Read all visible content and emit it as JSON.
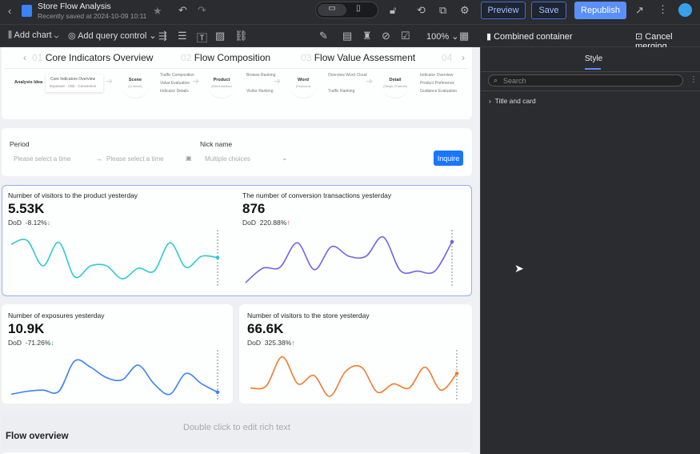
{
  "header": {
    "title": "Store Flow Analysis",
    "saved": "Recently saved at 2024-10-09 10:11",
    "preview": "Preview",
    "save": "Save",
    "republish": "Republish"
  },
  "toolbar": {
    "add_chart": "Add chart",
    "add_query": "Add query control",
    "zoom": "100%"
  },
  "panel": {
    "title": "Combined container",
    "cancel": "Cancel merging",
    "tab": "Style",
    "search_placeholder": "Search",
    "section": "Title and card"
  },
  "nav": {
    "steps": [
      {
        "num": "01",
        "label": "Core Indicators Overview"
      },
      {
        "num": "02",
        "label": "Flow Composition"
      },
      {
        "num": "03",
        "label": "Flow Value Assessment"
      },
      {
        "num": "04",
        "label": ""
      }
    ]
  },
  "ideas": {
    "label": "Analysis Idea",
    "overview": "Core Indicators Overview",
    "overview_sub": "Exposure - Visit - Conversion",
    "nodes": [
      {
        "name": "Scene",
        "sub": "(Channel)",
        "items": [
          "Traffic Composition",
          "Value Evaluation",
          "Indicator Details"
        ]
      },
      {
        "name": "Product",
        "sub": "(Merchandise)",
        "items": [
          "Browse Ranking",
          "Visitor Ranking"
        ]
      },
      {
        "name": "Word",
        "sub": "(Keyword)",
        "items": [
          "Overview Word Cloud",
          "Traffic Ranking"
        ]
      },
      {
        "name": "Detail",
        "sub": "(Single Channel)",
        "items": [
          "Indicator Overview",
          "Product Preference",
          "Guidance Evaluation"
        ]
      }
    ]
  },
  "filter": {
    "period_label": "Period",
    "start_placeholder": "Please select a time",
    "end_placeholder": "Please select a time",
    "nick_label": "Nick name",
    "nick_placeholder": "Multiple choices",
    "inquire": "Inquire"
  },
  "cards": [
    {
      "title": "Number of visitors to the product yesterday",
      "value": "5.53K",
      "dod_label": "DoD",
      "dod": "-8.12%",
      "trend": "down",
      "color": "#2ec9d4",
      "spark": [
        80,
        88,
        35,
        84,
        12,
        35,
        35,
        8,
        30,
        24,
        83,
        32,
        55,
        52
      ]
    },
    {
      "title": "The number of conversion transactions yesterday",
      "value": "876",
      "dod_label": "DoD",
      "dod": "220.88%",
      "trend": "up",
      "color": "#7562ee",
      "spark": [
        0,
        30,
        32,
        83,
        27,
        75,
        55,
        55,
        95,
        25,
        24,
        24,
        85
      ]
    },
    {
      "title": "Number of exposures yesterday",
      "value": "10.9K",
      "dod_label": "DoD",
      "dod": "-71.26%",
      "trend": "down",
      "color": "#3b82f6",
      "spark": [
        5,
        12,
        15,
        12,
        85,
        70,
        45,
        40,
        75,
        30,
        5,
        55,
        30,
        10
      ]
    },
    {
      "title": "Number of visitors to the store yesterday",
      "value": "66.6K",
      "dod_label": "DoD",
      "dod": "325.38%",
      "trend": "up",
      "color": "#f37b2b",
      "spark": [
        20,
        25,
        95,
        30,
        50,
        0,
        60,
        70,
        10,
        30,
        20,
        70,
        15,
        55
      ]
    }
  ],
  "richtext": {
    "placeholder": "Double click to edit rich text",
    "heading": "Flow overview"
  }
}
